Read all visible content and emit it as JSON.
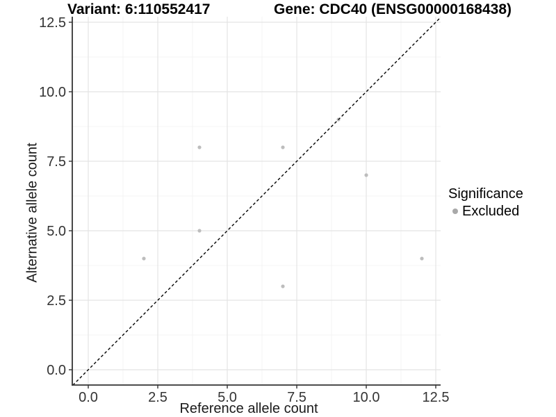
{
  "chart_data": {
    "type": "scatter",
    "titles": {
      "left": "Variant: 6:110552417",
      "right": "Gene: CDC40 (ENSG00000168438)"
    },
    "xlabel": "Reference allele count",
    "ylabel": "Alternative allele count",
    "xlim": [
      -0.575,
      12.675
    ],
    "ylim": [
      -0.55,
      12.7
    ],
    "x_ticks": [
      0,
      2.5,
      5,
      7.5,
      10,
      12.5
    ],
    "x_tick_labels": [
      "0.0",
      "2.5",
      "5.0",
      "7.5",
      "10.0",
      "12.5"
    ],
    "y_ticks": [
      0,
      2.5,
      5,
      7.5,
      10,
      12.5
    ],
    "y_tick_labels": [
      "0.0",
      "2.5",
      "5.0",
      "7.5",
      "10.0",
      "12.5"
    ],
    "minor_ticks": [
      1.25,
      3.75,
      6.25,
      8.75,
      11.25
    ],
    "series": [
      {
        "name": "Excluded",
        "color": "#bdbdbd",
        "points": [
          {
            "x": 2,
            "y": 4
          },
          {
            "x": 4,
            "y": 5
          },
          {
            "x": 4,
            "y": 8
          },
          {
            "x": 7,
            "y": 3
          },
          {
            "x": 7,
            "y": 8
          },
          {
            "x": 9,
            "y": 9
          },
          {
            "x": 10,
            "y": 7
          },
          {
            "x": 12,
            "y": 4
          }
        ]
      }
    ],
    "identity_line": {
      "slope": 1,
      "intercept": 0,
      "style": "dashed",
      "color": "#000000"
    },
    "legend": {
      "title": "Significance",
      "position": "right",
      "items": [
        {
          "label": "Excluded",
          "color": "#a9a9a9"
        }
      ]
    },
    "grid": {
      "major_color": "#e4e4e4",
      "minor_color": "#f1f1f1",
      "background": "#ffffff"
    },
    "axis_color": "#333333"
  }
}
